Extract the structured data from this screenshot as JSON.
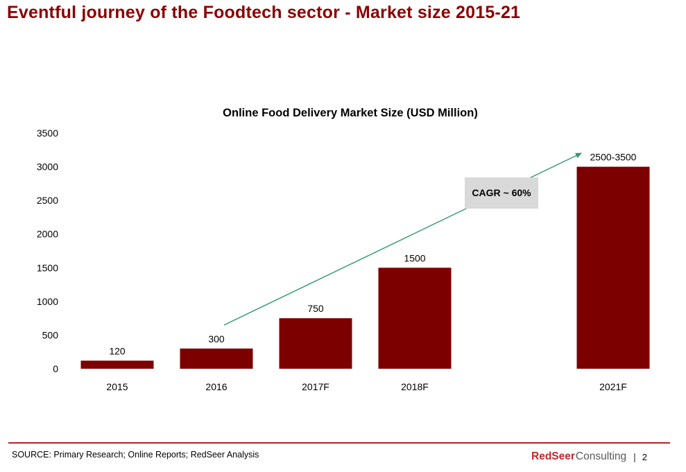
{
  "slide": {
    "title": "Eventful journey of the Foodtech sector - Market size 2015-21",
    "source": "SOURCE: Primary Research; Online Reports; RedSeer Analysis",
    "brand_red": "RedSeer",
    "brand_grey": "Consulting",
    "separator": "|",
    "page_number": "2"
  },
  "colors": {
    "title": "#8b0000",
    "bar": "#7d0000",
    "arrow": "#2e9a6a",
    "callout_bg": "#d9d9d9",
    "rule": "#b22222"
  },
  "chart_data": {
    "type": "bar",
    "title": "Online Food Delivery Market Size (USD Million)",
    "xlabel": "",
    "ylabel": "",
    "ylim": [
      0,
      3500
    ],
    "yticks": [
      0,
      500,
      1000,
      1500,
      2000,
      2500,
      3000,
      3500
    ],
    "grid": false,
    "categories": [
      "2015",
      "2016",
      "2017F",
      "2018F",
      "2021F"
    ],
    "values": [
      120,
      300,
      750,
      1500,
      3000
    ],
    "data_labels": [
      "120",
      "300",
      "750",
      "1500",
      "2500-3500"
    ],
    "annotations": [
      {
        "text": "CAGR ~ 60%",
        "type": "trend-arrow",
        "from_category": "2016",
        "to_category": "2021F"
      }
    ]
  }
}
